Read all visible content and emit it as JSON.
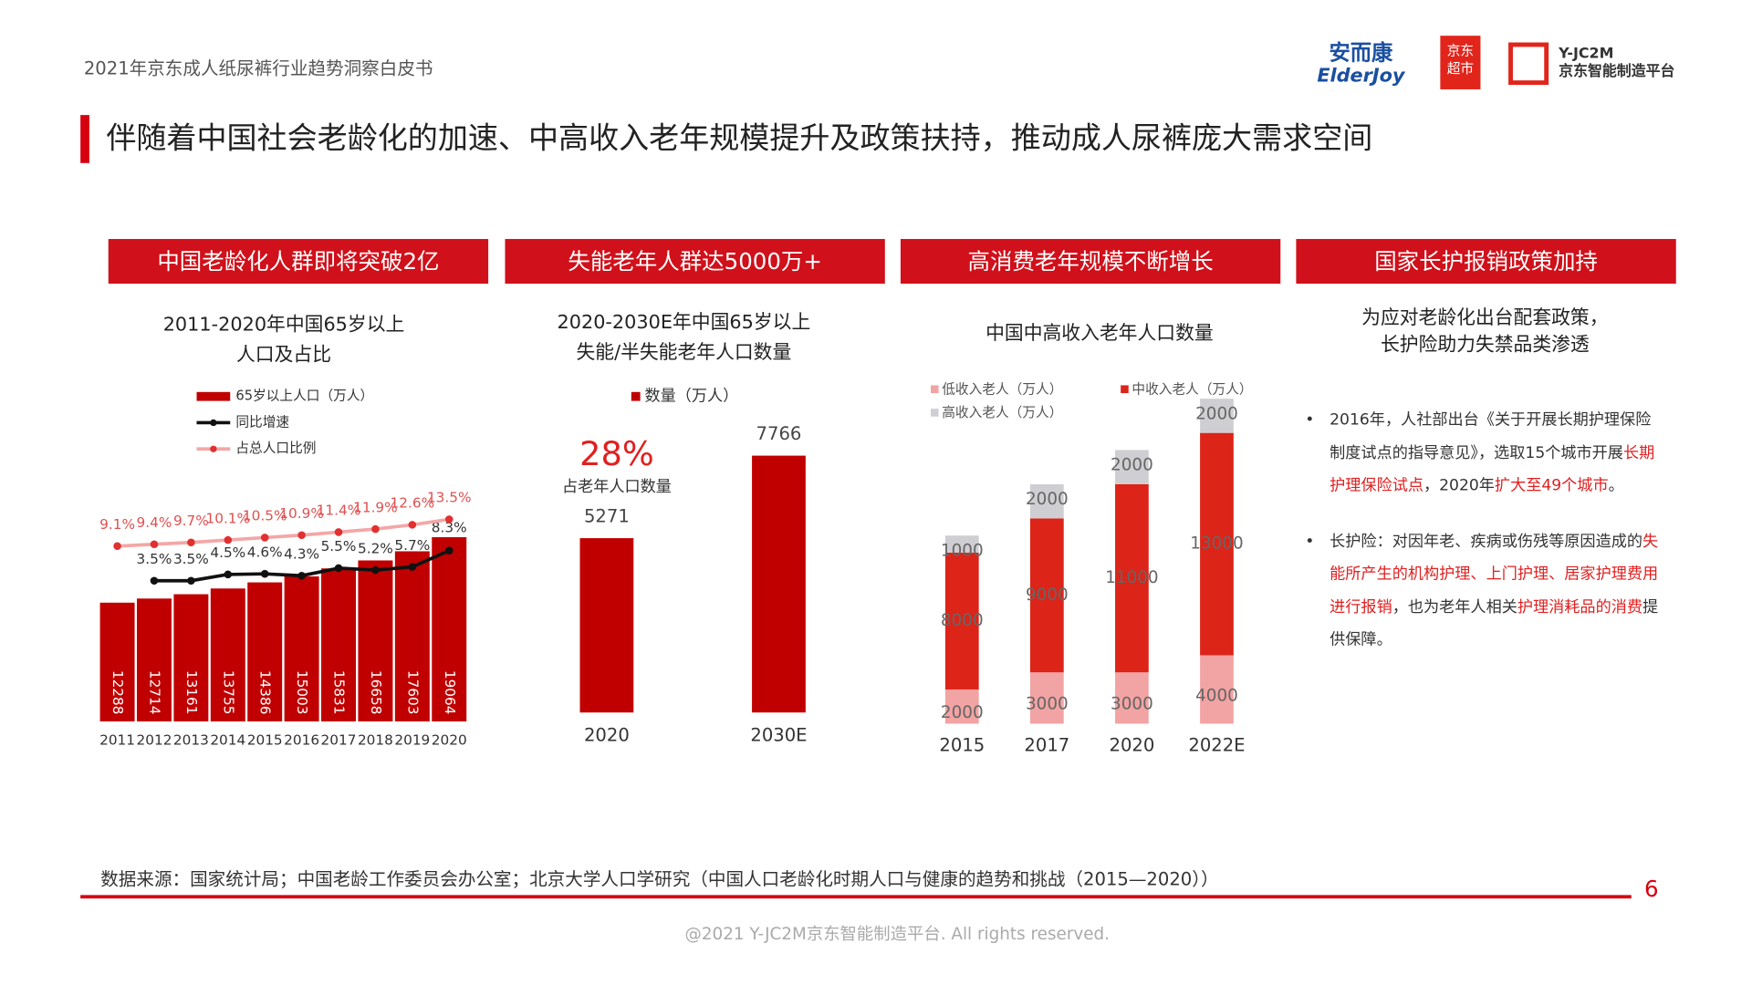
{
  "header": {
    "report": "2021年京东成人纸尿裤行业趋势洞察白皮书",
    "logos": [
      "安而康",
      "ElderJoy",
      "京东",
      "超市",
      "Y-JC2M",
      "京东智能制造平台"
    ]
  },
  "title": "伴随着中国社会老龄化的加速、中高收入老年规模提升及政策扶持，推动成人尿裤庞大需求空间",
  "panels": [
    "中国老龄化人群即将突破2亿",
    "失能老年人群达5000万+",
    "高消费老年规模不断增长",
    "国家长护报销政策加持"
  ],
  "chart_data": [
    {
      "type": "bar_line",
      "title": [
        "2011-2020年中国65岁以上",
        "人口及占比"
      ],
      "categories": [
        "2011",
        "2012",
        "2013",
        "2014",
        "2015",
        "2016",
        "2017",
        "2018",
        "2019",
        "2020"
      ],
      "series": [
        {
          "name": "65岁以上人口（万人）",
          "type": "bar",
          "color": "#c00000",
          "values": [
            12288,
            12714,
            13161,
            13755,
            14386,
            15003,
            15831,
            16658,
            17603,
            19064
          ]
        },
        {
          "name": "同比增速",
          "type": "line",
          "color": "#111111",
          "values": [
            null,
            3.5,
            3.5,
            4.5,
            4.6,
            4.3,
            5.5,
            5.2,
            5.7,
            8.3
          ],
          "value_labels": [
            null,
            "3.5%",
            "3.5%",
            "4.5%",
            "4.6%",
            "4.3%",
            "5.5%",
            "5.2%",
            "5.7%",
            "8.3%"
          ]
        },
        {
          "name": "占总人口比例",
          "type": "line",
          "color": "#f4a6a6",
          "values": [
            9.1,
            9.4,
            9.7,
            10.1,
            10.5,
            10.9,
            11.4,
            11.9,
            12.6,
            13.5
          ],
          "value_labels": [
            "9.1%",
            "9.4%",
            "9.7%",
            "10.1%",
            "10.5%",
            "10.9%",
            "11.4%",
            "11.9%",
            "12.6%",
            "13.5%"
          ]
        }
      ]
    },
    {
      "type": "bar",
      "title": [
        "2020-2030E年中国65岁以上",
        "失能/半失能老年人口数量"
      ],
      "categories": [
        "2020",
        "2030E"
      ],
      "series": [
        {
          "name": "数量（万人）",
          "color": "#c00000",
          "values": [
            5271,
            7766
          ]
        }
      ],
      "annotations": [
        "28%",
        "占老年人口数量"
      ]
    },
    {
      "type": "stacked_bar",
      "title": [
        "中国中高收入老年人口数量"
      ],
      "categories": [
        "2015",
        "2017",
        "2020",
        "2022E"
      ],
      "series": [
        {
          "name": "低收入老人（万人）",
          "color": "#f2a3a3",
          "values": [
            2000,
            3000,
            3000,
            4000
          ]
        },
        {
          "name": "中收入老人（万人）",
          "color": "#dc2418",
          "values": [
            8000,
            9000,
            11000,
            13000
          ]
        },
        {
          "name": "高收入老人（万人）",
          "color": "#cfcfd3",
          "values": [
            1000,
            2000,
            2000,
            2000
          ]
        }
      ]
    }
  ],
  "policy": {
    "heading": [
      "为应对老龄化出台配套政策，",
      "长护险助力失禁品类渗透"
    ],
    "bullets": [
      [
        "2016年，人社部出台《关于开展长期护理保险制度试点的指导意见》，选取15个城市开展",
        "长期护理保险试点",
        "，2020年",
        "扩大至49个城市",
        "。"
      ],
      [
        "长护险：对因年老、疾病或伤残等原因造成的",
        "失能所产生的机构护理、上门护理、居家护理费用进行报销",
        "，也为老年人相关",
        "护理消耗品的消费",
        "提供保障。"
      ]
    ]
  },
  "source": "数据来源：国家统计局；中国老龄工作委员会办公室；北京大学人口学研究（中国人口老龄化时期人口与健康的趋势和挑战（2015—2020））",
  "page": "6",
  "copyright": "@2021 Y-JC2M京东智能制造平台. All rights reserved."
}
